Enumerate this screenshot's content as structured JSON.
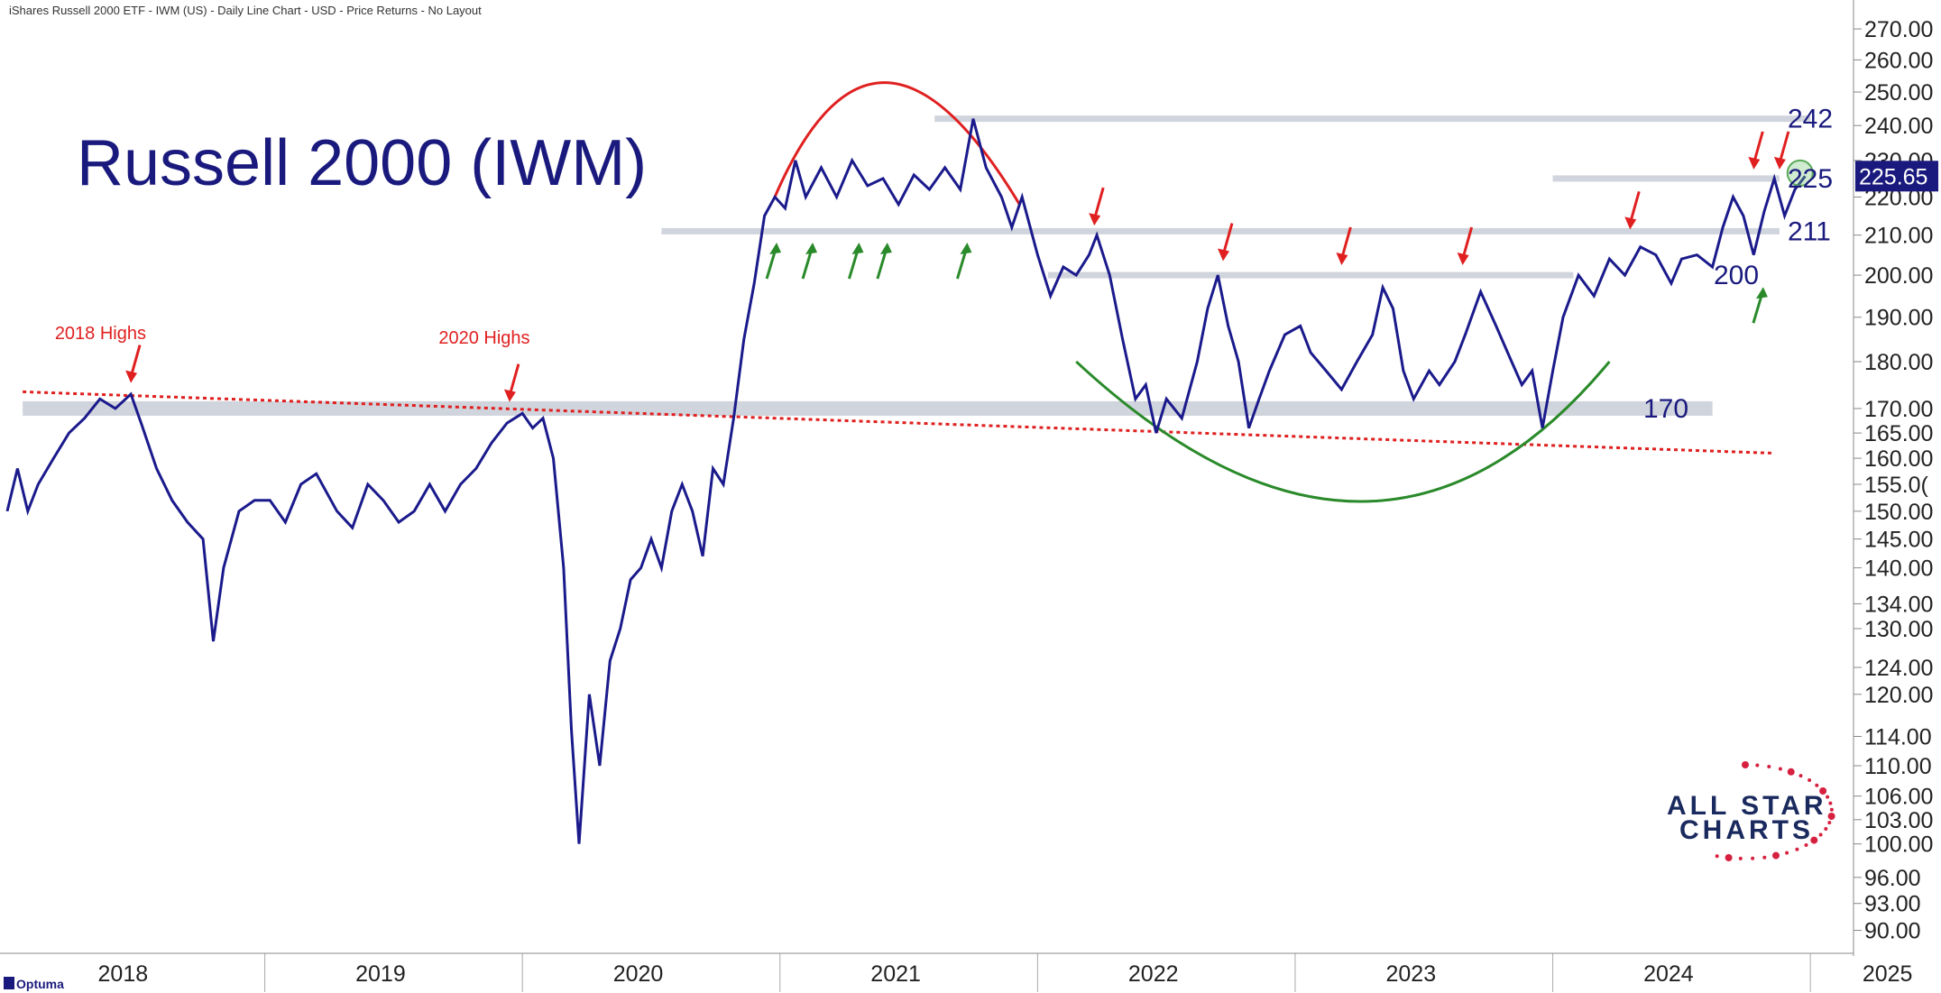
{
  "header": {
    "subtitle": "iShares Russell 2000 ETF - IWM (US) - Daily Line Chart - USD - Price Returns - No Layout"
  },
  "branding": {
    "platform": "Optuma",
    "logo_line1": "ALL STAR",
    "logo_line2": "CHARTS"
  },
  "chart_data": {
    "type": "line",
    "title": "Russell 2000 (IWM)",
    "y_scale": "log",
    "ylim": [
      88,
      273
    ],
    "xlim": [
      2018.0,
      2025.15
    ],
    "y_ticks": [
      "270.00",
      "260.00",
      "250.00",
      "240.00",
      "230.00",
      "220.00",
      "210.00",
      "200.00",
      "190.00",
      "180.00",
      "170.00",
      "165.00",
      "160.00",
      "155.0(",
      "150.00",
      "145.00",
      "140.00",
      "134.00",
      "130.00",
      "124.00",
      "120.00",
      "114.00",
      "110.00",
      "106.00",
      "103.00",
      "100.00",
      "96.00",
      "93.00",
      "90.00"
    ],
    "y_tick_values": [
      270,
      260,
      250,
      240,
      230,
      220,
      210,
      200,
      190,
      180,
      170,
      165,
      160,
      155,
      150,
      145,
      140,
      134,
      130,
      124,
      120,
      114,
      110,
      106,
      103,
      100,
      96,
      93,
      90
    ],
    "x_ticks": [
      "2018",
      "2019",
      "2020",
      "2021",
      "2022",
      "2023",
      "2024",
      "2025"
    ],
    "x_tick_values": [
      2018.45,
      2019.45,
      2020.45,
      2021.45,
      2022.45,
      2023.45,
      2024.45,
      2025.3
    ],
    "last_value": "225.65",
    "series": [
      {
        "color": "#1a1a8c",
        "points": [
          [
            2018.0,
            150
          ],
          [
            2018.04,
            158
          ],
          [
            2018.08,
            150
          ],
          [
            2018.12,
            155
          ],
          [
            2018.18,
            160
          ],
          [
            2018.24,
            165
          ],
          [
            2018.3,
            168
          ],
          [
            2018.36,
            172
          ],
          [
            2018.42,
            170
          ],
          [
            2018.48,
            173
          ],
          [
            2018.52,
            167
          ],
          [
            2018.58,
            158
          ],
          [
            2018.64,
            152
          ],
          [
            2018.7,
            148
          ],
          [
            2018.76,
            145
          ],
          [
            2018.8,
            128
          ],
          [
            2018.84,
            140
          ],
          [
            2018.9,
            150
          ],
          [
            2018.96,
            152
          ],
          [
            2019.02,
            152
          ],
          [
            2019.08,
            148
          ],
          [
            2019.14,
            155
          ],
          [
            2019.2,
            157
          ],
          [
            2019.28,
            150
          ],
          [
            2019.34,
            147
          ],
          [
            2019.4,
            155
          ],
          [
            2019.46,
            152
          ],
          [
            2019.52,
            148
          ],
          [
            2019.58,
            150
          ],
          [
            2019.64,
            155
          ],
          [
            2019.7,
            150
          ],
          [
            2019.76,
            155
          ],
          [
            2019.82,
            158
          ],
          [
            2019.88,
            163
          ],
          [
            2019.94,
            167
          ],
          [
            2020.0,
            169
          ],
          [
            2020.04,
            166
          ],
          [
            2020.08,
            168
          ],
          [
            2020.12,
            160
          ],
          [
            2020.16,
            140
          ],
          [
            2020.19,
            115
          ],
          [
            2020.22,
            100
          ],
          [
            2020.26,
            120
          ],
          [
            2020.3,
            110
          ],
          [
            2020.34,
            125
          ],
          [
            2020.38,
            130
          ],
          [
            2020.42,
            138
          ],
          [
            2020.46,
            140
          ],
          [
            2020.5,
            145
          ],
          [
            2020.54,
            140
          ],
          [
            2020.58,
            150
          ],
          [
            2020.62,
            155
          ],
          [
            2020.66,
            150
          ],
          [
            2020.7,
            142
          ],
          [
            2020.74,
            158
          ],
          [
            2020.78,
            155
          ],
          [
            2020.82,
            168
          ],
          [
            2020.86,
            185
          ],
          [
            2020.9,
            198
          ],
          [
            2020.94,
            215
          ],
          [
            2020.98,
            220
          ],
          [
            2021.02,
            217
          ],
          [
            2021.06,
            230
          ],
          [
            2021.1,
            220
          ],
          [
            2021.16,
            228
          ],
          [
            2021.22,
            220
          ],
          [
            2021.28,
            230
          ],
          [
            2021.34,
            223
          ],
          [
            2021.4,
            225
          ],
          [
            2021.46,
            218
          ],
          [
            2021.52,
            226
          ],
          [
            2021.58,
            222
          ],
          [
            2021.64,
            228
          ],
          [
            2021.7,
            222
          ],
          [
            2021.75,
            242
          ],
          [
            2021.8,
            228
          ],
          [
            2021.86,
            220
          ],
          [
            2021.9,
            212
          ],
          [
            2021.94,
            220
          ],
          [
            2022.0,
            205
          ],
          [
            2022.05,
            195
          ],
          [
            2022.1,
            202
          ],
          [
            2022.15,
            200
          ],
          [
            2022.2,
            205
          ],
          [
            2022.23,
            210
          ],
          [
            2022.28,
            200
          ],
          [
            2022.33,
            185
          ],
          [
            2022.38,
            172
          ],
          [
            2022.42,
            175
          ],
          [
            2022.46,
            165
          ],
          [
            2022.5,
            172
          ],
          [
            2022.56,
            168
          ],
          [
            2022.62,
            180
          ],
          [
            2022.66,
            192
          ],
          [
            2022.7,
            200
          ],
          [
            2022.74,
            188
          ],
          [
            2022.78,
            180
          ],
          [
            2022.82,
            166
          ],
          [
            2022.86,
            172
          ],
          [
            2022.9,
            178
          ],
          [
            2022.96,
            186
          ],
          [
            2023.02,
            188
          ],
          [
            2023.06,
            182
          ],
          [
            2023.12,
            178
          ],
          [
            2023.18,
            174
          ],
          [
            2023.24,
            180
          ],
          [
            2023.3,
            186
          ],
          [
            2023.34,
            197
          ],
          [
            2023.38,
            192
          ],
          [
            2023.42,
            178
          ],
          [
            2023.46,
            172
          ],
          [
            2023.52,
            178
          ],
          [
            2023.56,
            175
          ],
          [
            2023.62,
            180
          ],
          [
            2023.66,
            186
          ],
          [
            2023.72,
            196
          ],
          [
            2023.78,
            188
          ],
          [
            2023.84,
            180
          ],
          [
            2023.88,
            175
          ],
          [
            2023.92,
            178
          ],
          [
            2023.96,
            166
          ],
          [
            2024.0,
            178
          ],
          [
            2024.04,
            190
          ],
          [
            2024.1,
            200
          ],
          [
            2024.16,
            195
          ],
          [
            2024.22,
            204
          ],
          [
            2024.28,
            200
          ],
          [
            2024.34,
            207
          ],
          [
            2024.4,
            205
          ],
          [
            2024.46,
            198
          ],
          [
            2024.5,
            204
          ],
          [
            2024.56,
            205
          ],
          [
            2024.62,
            202
          ],
          [
            2024.66,
            212
          ],
          [
            2024.7,
            220
          ],
          [
            2024.74,
            215
          ],
          [
            2024.78,
            205
          ],
          [
            2024.82,
            216
          ],
          [
            2024.86,
            225
          ],
          [
            2024.9,
            215
          ],
          [
            2024.94,
            222
          ],
          [
            2024.98,
            225.65
          ]
        ]
      }
    ]
  },
  "annotations": {
    "levels": [
      {
        "value": 242,
        "label": "242",
        "x_start": 2021.6,
        "x_end": 2025.0
      },
      {
        "value": 225,
        "label": "225",
        "x_start": 2024.0,
        "x_end": 2024.88
      },
      {
        "value": 211,
        "label": "211",
        "x_start": 2020.54,
        "x_end": 2024.88
      },
      {
        "value": 200,
        "label": "200",
        "x_start": 2022.04,
        "x_end": 2024.08
      },
      {
        "value": 170,
        "label": "170",
        "x_start": 2018.06,
        "x_end": 2024.62
      }
    ],
    "callouts": [
      {
        "text": "2018 Highs",
        "x": 2018.36,
        "value": 185
      },
      {
        "text": "2020 Highs",
        "x": 2019.85,
        "value": 184
      }
    ],
    "trendline": {
      "color": "#e02020",
      "from": [
        2018.06,
        173.5
      ],
      "to": [
        2024.85,
        161
      ]
    },
    "colors": {
      "line": "#1a1a8c",
      "resistance": "#e02020",
      "support": "#2a8a2a",
      "level_band": "#d0d4dc",
      "last_value_bg": "#1a1a7e"
    }
  }
}
